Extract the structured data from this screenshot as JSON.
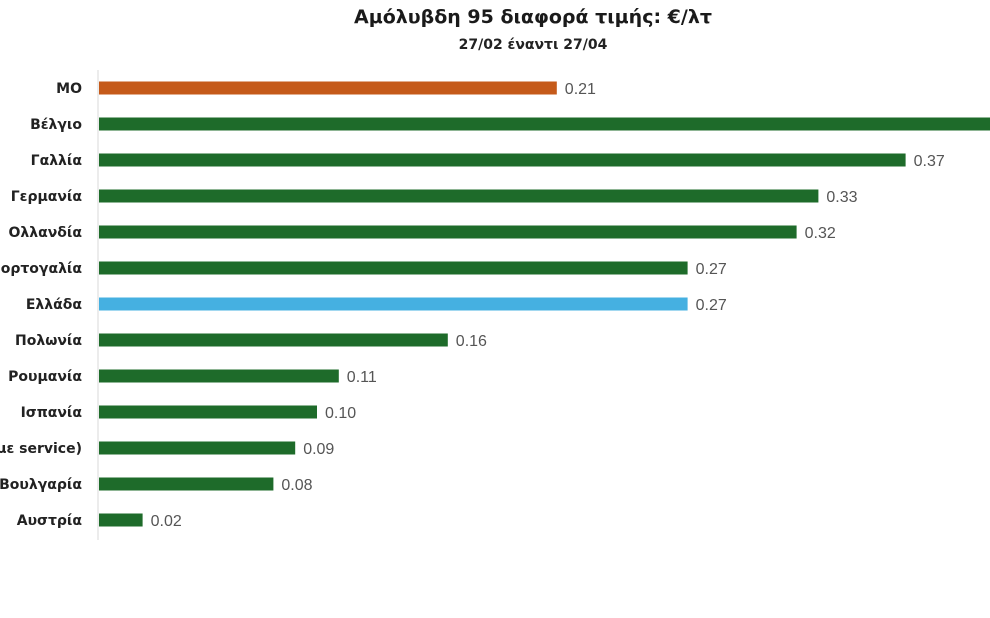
{
  "chart_data": {
    "type": "bar",
    "orientation": "horizontal",
    "title": "Αμόλυβδη 95 διαφορά τιμής: €/λτ",
    "subtitle": "27/02 έναντι 27/04",
    "categories": [
      "ΜΟ",
      "Βέλγιο",
      "Γαλλία",
      "Γερμανία",
      "Ολλανδία",
      "ορτογαλία",
      "Ελλάδα",
      "Πολωνία",
      "Ρουμανία",
      "Ισπανία",
      "με service)",
      "Βουλγαρία",
      "Αυστρία"
    ],
    "values": [
      0.21,
      0.45,
      0.37,
      0.33,
      0.32,
      0.27,
      0.27,
      0.16,
      0.11,
      0.1,
      0.09,
      0.08,
      0.02
    ],
    "value_labels": [
      "0.21",
      "",
      "0.37",
      "0.33",
      "0.32",
      "0.27",
      "0.27",
      "0.16",
      "0.11",
      "0.10",
      "0.09",
      "0.08",
      "0.02"
    ],
    "bar_colors": [
      "#c55a1a",
      "#1e6b2a",
      "#1e6b2a",
      "#1e6b2a",
      "#1e6b2a",
      "#1e6b2a",
      "#45b0e1",
      "#1e6b2a",
      "#1e6b2a",
      "#1e6b2a",
      "#1e6b2a",
      "#1e6b2a",
      "#1e6b2a"
    ],
    "xlabel": "",
    "ylabel": "",
    "grid": false,
    "legend": "none"
  }
}
